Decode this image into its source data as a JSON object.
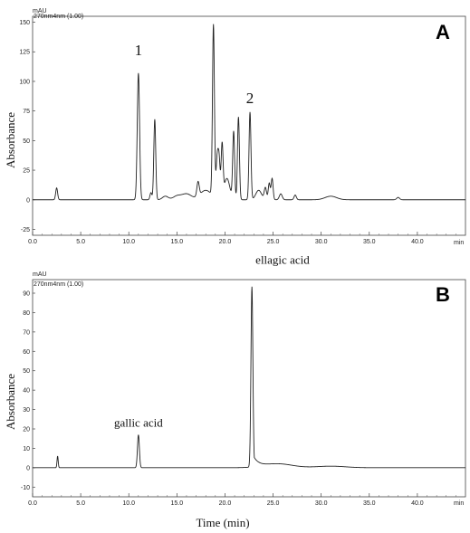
{
  "figure": {
    "xlabel": "Time (min)"
  },
  "chart_data": [
    {
      "type": "line",
      "panel_label": "A",
      "channel_label": "270nm4nm  (1.00)",
      "unit_label": "mAU",
      "ylabel": "Absorbance",
      "x_unit_label": "min",
      "xlim": [
        0,
        45
      ],
      "ylim": [
        -30,
        155
      ],
      "x_ticks": [
        "0.0",
        "5.0",
        "10.0",
        "15.0",
        "20.0",
        "25.0",
        "30.0",
        "35.0",
        "40.0"
      ],
      "y_ticks": [
        -25,
        0,
        25,
        50,
        75,
        100,
        125,
        150
      ],
      "baseline": 0,
      "peaks": [
        {
          "t": 2.5,
          "h": 10,
          "w": 0.1
        },
        {
          "t": 11.0,
          "h": 107,
          "w": 0.12,
          "label": "1"
        },
        {
          "t": 12.3,
          "h": 6,
          "w": 0.1
        },
        {
          "t": 12.7,
          "h": 68,
          "w": 0.1
        },
        {
          "t": 13.8,
          "h": 3,
          "w": 0.3
        },
        {
          "t": 15.0,
          "h": 3,
          "w": 0.4
        },
        {
          "t": 16.0,
          "h": 5,
          "w": 0.5
        },
        {
          "t": 17.2,
          "h": 12,
          "w": 0.12
        },
        {
          "t": 18.0,
          "h": 8,
          "w": 0.6
        },
        {
          "t": 18.8,
          "h": 145,
          "w": 0.1
        },
        {
          "t": 19.2,
          "h": 36,
          "w": 0.12
        },
        {
          "t": 19.4,
          "h": 28,
          "w": 0.1
        },
        {
          "t": 19.7,
          "h": 44,
          "w": 0.1
        },
        {
          "t": 20.2,
          "h": 18,
          "w": 0.3
        },
        {
          "t": 20.9,
          "h": 57,
          "w": 0.1
        },
        {
          "t": 21.4,
          "h": 70,
          "w": 0.1
        },
        {
          "t": 22.6,
          "h": 74,
          "w": 0.1,
          "label": "2"
        },
        {
          "t": 23.5,
          "h": 8,
          "w": 0.3
        },
        {
          "t": 24.2,
          "h": 10,
          "w": 0.12
        },
        {
          "t": 24.6,
          "h": 14,
          "w": 0.1
        },
        {
          "t": 24.9,
          "h": 18,
          "w": 0.1
        },
        {
          "t": 25.8,
          "h": 5,
          "w": 0.15
        },
        {
          "t": 27.3,
          "h": 4,
          "w": 0.12
        },
        {
          "t": 31.0,
          "h": 3,
          "w": 0.6
        },
        {
          "t": 38.0,
          "h": 2,
          "w": 0.15
        }
      ]
    },
    {
      "type": "line",
      "panel_label": "B",
      "channel_label": "270nm4nm (1.00)",
      "unit_label": "mAU",
      "ylabel": "Absorbance",
      "x_unit_label": "min",
      "xlim": [
        0,
        45
      ],
      "ylim": [
        -15,
        97
      ],
      "x_ticks": [
        "0.0",
        "5.0",
        "10.0",
        "15.0",
        "20.0",
        "25.0",
        "30.0",
        "35.0",
        "40.0"
      ],
      "y_ticks": [
        -10,
        0,
        10,
        20,
        30,
        40,
        50,
        60,
        70,
        80,
        90
      ],
      "baseline": 0,
      "peaks": [
        {
          "t": 2.6,
          "h": 6,
          "w": 0.06
        },
        {
          "t": 11.0,
          "h": 17,
          "w": 0.1,
          "label": "gallic acid"
        },
        {
          "t": 22.8,
          "h": 93,
          "w": 0.1,
          "tail": 0.55,
          "label": "ellagic acid"
        },
        {
          "t": 25.5,
          "h": 2,
          "w": 1.5
        },
        {
          "t": 31.0,
          "h": 0.8,
          "w": 1.5
        }
      ]
    }
  ]
}
